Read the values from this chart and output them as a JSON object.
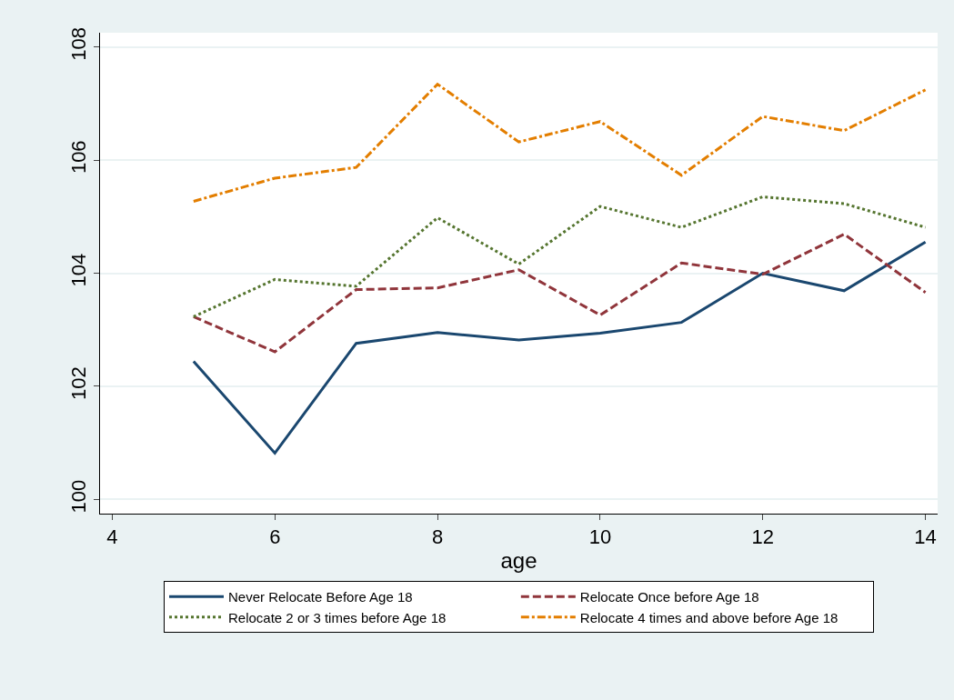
{
  "chart_data": {
    "type": "line",
    "xlabel": "age",
    "x": [
      5,
      6,
      7,
      8,
      9,
      10,
      11,
      12,
      13,
      14
    ],
    "series": [
      {
        "name": "Never Relocate Before Age 18",
        "color": "#1a476f",
        "line_style": "solid",
        "values": [
          102.44,
          100.82,
          102.76,
          102.95,
          102.82,
          102.94,
          103.13,
          104.0,
          103.69,
          104.55
        ]
      },
      {
        "name": "Relocate Once before Age 18",
        "color": "#90353b",
        "line_style": "dashed",
        "values": [
          103.23,
          102.61,
          103.71,
          103.74,
          104.06,
          103.26,
          104.18,
          103.98,
          104.69,
          103.66
        ]
      },
      {
        "name": "Relocate 2 or 3 times before Age 18",
        "color": "#55752f",
        "line_style": "dotted",
        "values": [
          103.23,
          103.89,
          103.77,
          104.98,
          104.16,
          105.18,
          104.81,
          105.35,
          105.23,
          104.81
        ]
      },
      {
        "name": "Relocate 4 times and above before Age 18",
        "color": "#e37e00",
        "line_style": "dashdot",
        "values": [
          105.27,
          105.68,
          105.87,
          107.34,
          106.32,
          106.68,
          105.73,
          106.77,
          106.52,
          107.24
        ]
      }
    ],
    "xlim": [
      3.85,
      14.15
    ],
    "xticks": [
      4,
      6,
      8,
      10,
      12,
      14
    ],
    "ylim": [
      99.75,
      108.25
    ],
    "yticks": [
      100,
      102,
      104,
      106,
      108
    ],
    "grid": "y",
    "legend": "bottom",
    "marker": "none"
  }
}
